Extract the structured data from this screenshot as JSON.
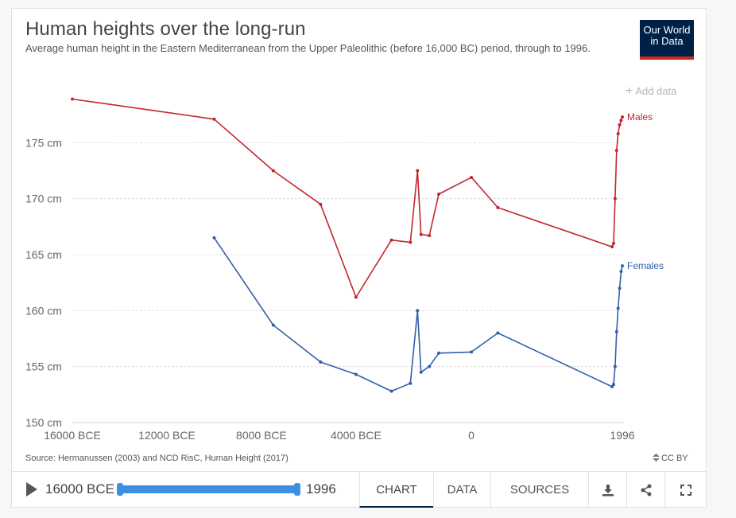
{
  "header": {
    "title": "Human heights over the long-run",
    "subtitle": "Average human height in the Eastern Mediterranean from the Upper Paleolithic (before 16,000 BC) period, through to 1996.",
    "logo_line1": "Our World",
    "logo_line2": "in Data",
    "add_data": "Add data"
  },
  "footer": {
    "source": "Source: Hermanussen (2003) and NCD RisC, Human Height (2017)",
    "license": "CC BY",
    "timeline_start": "16000 BCE",
    "timeline_end": "1996",
    "tabs": {
      "chart": "CHART",
      "data": "DATA",
      "sources": "SOURCES"
    }
  },
  "colors": {
    "males": "#c4262d",
    "females": "#3360a9",
    "brand": "#002147",
    "accent": "#3f8ee3"
  },
  "chart_data": {
    "type": "line",
    "title": "Human heights over the long-run",
    "xlim": [
      -16000,
      1996
    ],
    "ylim": [
      150,
      180
    ],
    "x_ticks": [
      {
        "value": -16000,
        "label": "16000 BCE"
      },
      {
        "value": -12000,
        "label": "12000 BCE"
      },
      {
        "value": -8000,
        "label": "8000 BCE"
      },
      {
        "value": -4000,
        "label": "4000 BCE"
      },
      {
        "value": 0,
        "label": "0"
      },
      {
        "value": 1996,
        "label": "1996"
      }
    ],
    "y_ticks": [
      {
        "value": 150,
        "label": "150 cm"
      },
      {
        "value": 155,
        "label": "155 cm"
      },
      {
        "value": 160,
        "label": "160 cm"
      },
      {
        "value": 165,
        "label": "165 cm"
      },
      {
        "value": 170,
        "label": "170 cm"
      },
      {
        "value": 175,
        "label": "175 cm"
      }
    ],
    "grid": true,
    "series": [
      {
        "name": "Males",
        "color": "#c4262d",
        "points": [
          [
            -16000,
            178.9
          ],
          [
            -10000,
            177.1
          ],
          [
            -7500,
            172.5
          ],
          [
            -5500,
            169.5
          ],
          [
            -4000,
            161.2
          ],
          [
            -2500,
            166.3
          ],
          [
            -1700,
            166.1
          ],
          [
            -1400,
            172.5
          ],
          [
            -1250,
            166.8
          ],
          [
            -900,
            166.7
          ],
          [
            -500,
            170.4
          ],
          [
            0,
            171.9
          ],
          [
            350,
            169.2
          ],
          [
            1860,
            165.7
          ],
          [
            1880,
            166.0
          ],
          [
            1900,
            170.0
          ],
          [
            1920,
            174.3
          ],
          [
            1940,
            175.8
          ],
          [
            1960,
            176.6
          ],
          [
            1980,
            177.0
          ],
          [
            1996,
            177.3
          ]
        ]
      },
      {
        "name": "Females",
        "color": "#3360a9",
        "points": [
          [
            -10000,
            166.5
          ],
          [
            -7500,
            158.7
          ],
          [
            -5500,
            155.4
          ],
          [
            -4000,
            154.3
          ],
          [
            -2500,
            152.8
          ],
          [
            -1700,
            153.5
          ],
          [
            -1400,
            160.0
          ],
          [
            -1250,
            154.5
          ],
          [
            -900,
            155.0
          ],
          [
            -500,
            156.2
          ],
          [
            0,
            156.3
          ],
          [
            350,
            158.0
          ],
          [
            1860,
            153.2
          ],
          [
            1880,
            153.4
          ],
          [
            1900,
            155.0
          ],
          [
            1920,
            158.1
          ],
          [
            1940,
            160.2
          ],
          [
            1960,
            162.0
          ],
          [
            1980,
            163.5
          ],
          [
            1996,
            164.0
          ]
        ]
      }
    ]
  }
}
